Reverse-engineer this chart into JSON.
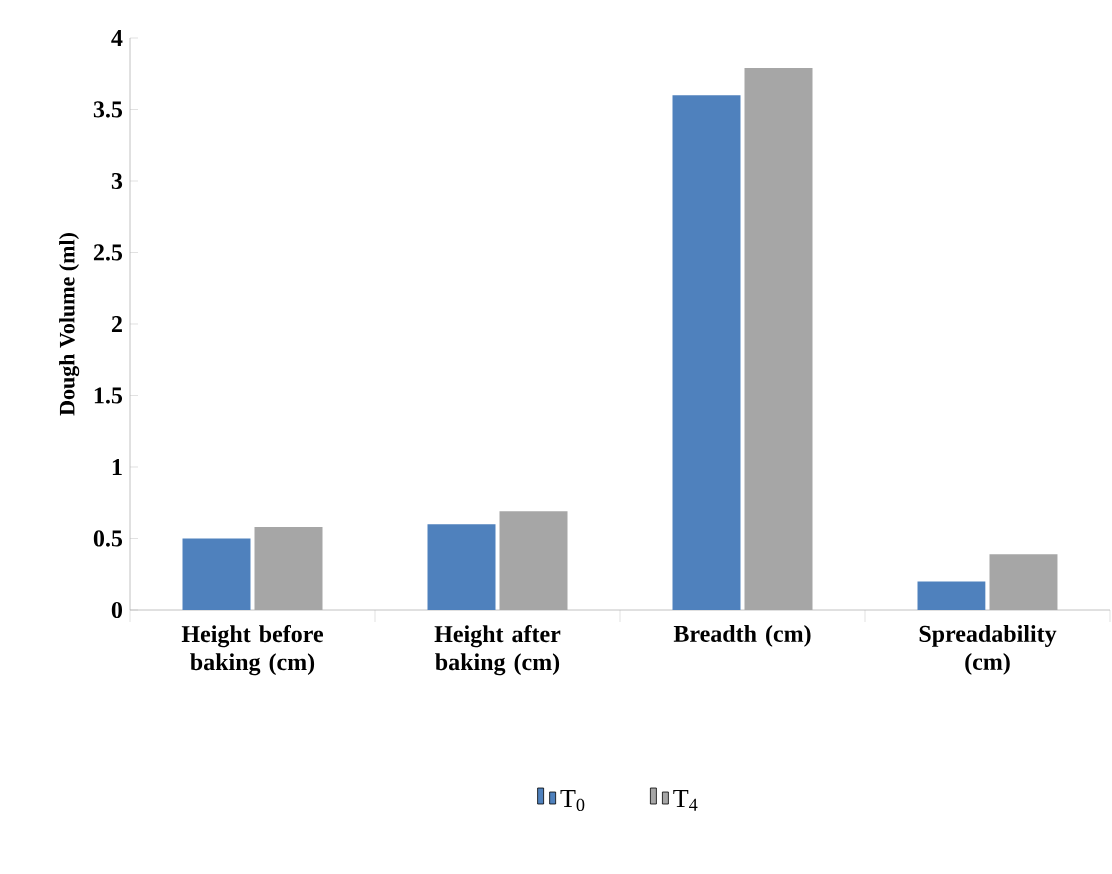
{
  "chart_data": {
    "type": "bar",
    "ylabel": "Dough Volume (ml)",
    "categories": [
      "Height before baking (cm)",
      "Height after baking (cm)",
      "Breadth  (cm)",
      "Spreadability (cm)"
    ],
    "series": [
      {
        "name": "T$_{0}$",
        "color": "#4f81bd",
        "values": [
          0.5,
          0.6,
          3.6,
          0.2
        ]
      },
      {
        "name": "T$_{4}$",
        "color": "#a6a6a6",
        "values": [
          0.58,
          0.69,
          3.79,
          0.39
        ]
      }
    ],
    "ylim": [
      0,
      4
    ],
    "yticks": [
      0,
      0.5,
      1,
      1.5,
      2,
      2.5,
      3,
      3.5,
      4
    ],
    "grid": false,
    "legend": "bottom"
  }
}
